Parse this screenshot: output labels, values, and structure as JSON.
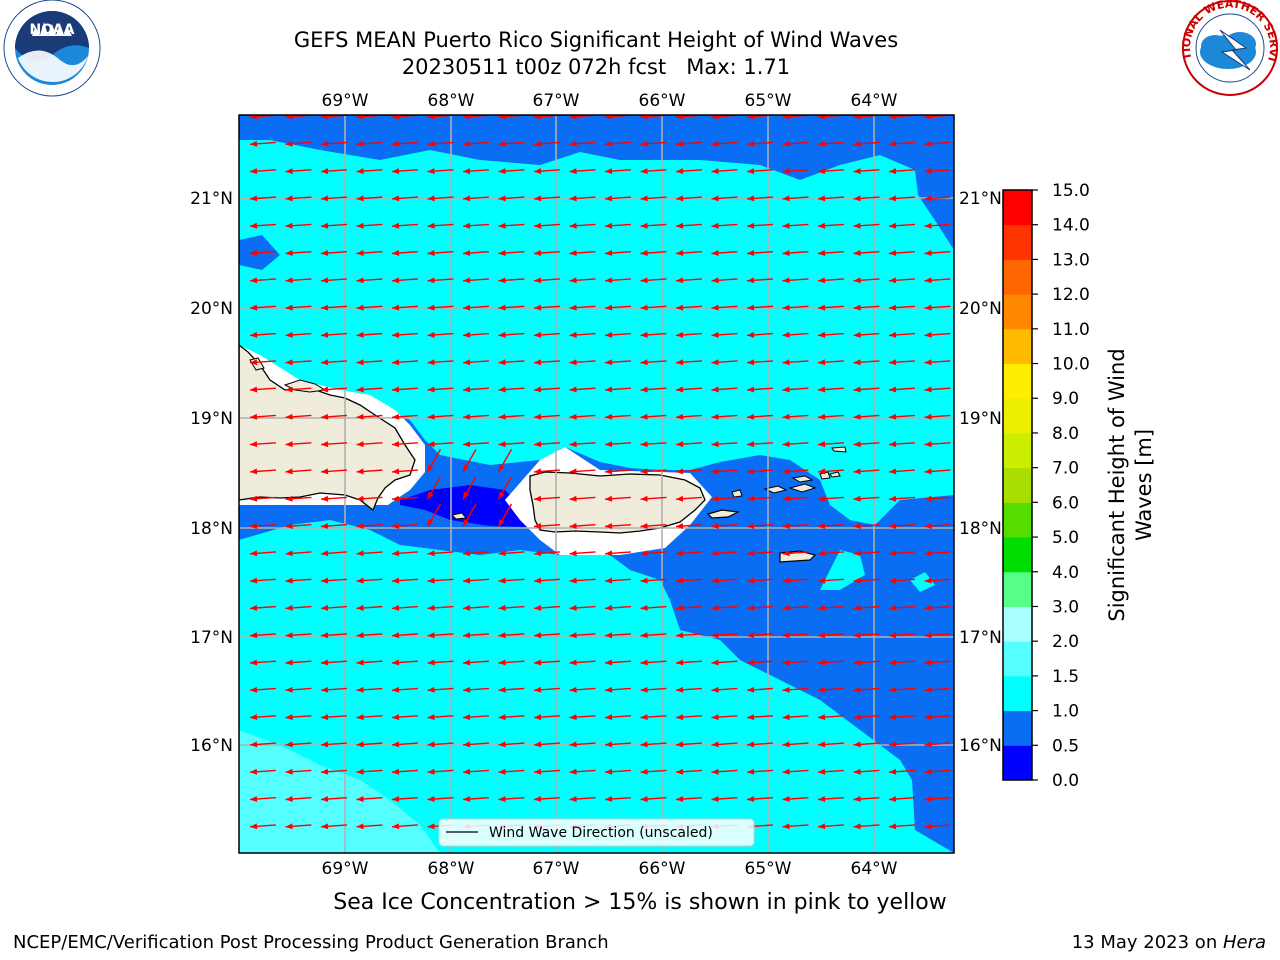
{
  "title": {
    "line1": "GEFS MEAN Puerto Rico Significant Height of Wind Waves",
    "line2": "20230511 t00z 072h fcst   Max: 1.71"
  },
  "map": {
    "lon_labels": [
      "69°W",
      "68°W",
      "67°W",
      "66°W",
      "65°W",
      "64°W"
    ],
    "lat_labels": [
      "21°N",
      "20°N",
      "19°N",
      "18°N",
      "17°N",
      "16°N"
    ],
    "extent": {
      "lon_min": -70.0,
      "lon_max": -63.25,
      "lat_min": 15.0,
      "lat_max": 21.75
    },
    "legend_label": "Wind Wave Direction (unscaled)",
    "arrow_color": "#ff0000",
    "land_color": "#efecdc",
    "coast_color": "#000000"
  },
  "colorbar": {
    "label": "Significant Height of Wind Waves [m]",
    "label_line1": "Significant Height of Wind",
    "label_line2": "Waves [m]",
    "ticks": [
      "0.0",
      "0.5",
      "1.0",
      "1.5",
      "2.0",
      "3.0",
      "4.0",
      "5.0",
      "6.0",
      "7.0",
      "8.0",
      "9.0",
      "10.0",
      "11.0",
      "12.0",
      "13.0",
      "14.0",
      "15.0"
    ],
    "colors": [
      "#0000ff",
      "#0a6ef5",
      "#00ffff",
      "#55ffff",
      "#aaffff",
      "#55ff88",
      "#00dd00",
      "#55dd00",
      "#aadd00",
      "#ccee00",
      "#eeee00",
      "#ffee00",
      "#ffbb00",
      "#ff8800",
      "#ff6600",
      "#ff3300",
      "#ff0000"
    ]
  },
  "logos": {
    "noaa": "NOAA",
    "nws": "NATIONAL WEATHER SERVICE"
  },
  "ice_note": "Sea Ice Concentration > 15% is shown in pink to yellow",
  "footer": {
    "left": "NCEP/EMC/Verification Post Processing Product Generation Branch",
    "right_prefix": "13 May 2023 on ",
    "right_italic": "Hera"
  }
}
